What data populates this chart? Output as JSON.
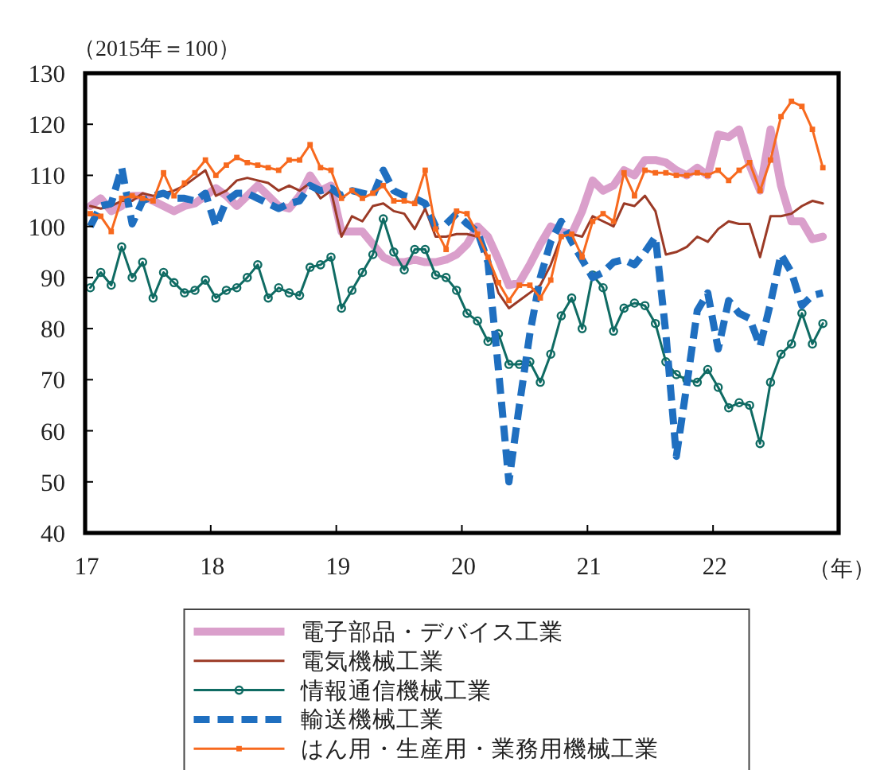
{
  "chart_data": {
    "type": "line",
    "ylabel": "（2015年＝100）",
    "xlabel": "（年）",
    "x": [
      "2017-01-16",
      "2017-02-16",
      "2017-03-16",
      "2017-04-16",
      "2017-05-16",
      "2017-06-16",
      "2017-07-16",
      "2017-08-16",
      "2017-09-16",
      "2017-10-16",
      "2017-11-16",
      "2017-12-16",
      "2018-01-16",
      "2018-02-16",
      "2018-03-16",
      "2018-04-16",
      "2018-05-16",
      "2018-06-16",
      "2018-07-16",
      "2018-08-16",
      "2018-09-16",
      "2018-10-16",
      "2018-11-16",
      "2018-12-16",
      "2019-01-16",
      "2019-02-16",
      "2019-03-16",
      "2019-04-16",
      "2019-05-16",
      "2019-06-16",
      "2019-07-16",
      "2019-08-16",
      "2019-09-16",
      "2019-10-16",
      "2019-11-16",
      "2019-12-16",
      "2020-01-16",
      "2020-02-16",
      "2020-03-16",
      "2020-04-16",
      "2020-05-16",
      "2020-06-16",
      "2020-07-16",
      "2020-08-16",
      "2020-09-16",
      "2020-10-16",
      "2020-11-16",
      "2020-12-16",
      "2021-01-16",
      "2021-02-16",
      "2021-03-16",
      "2021-04-16",
      "2021-05-16",
      "2021-06-16",
      "2021-07-16",
      "2021-08-16",
      "2021-09-16",
      "2021-10-16",
      "2021-11-16",
      "2021-12-16",
      "2022-01-16",
      "2022-02-16",
      "2022-03-16",
      "2022-04-16",
      "2022-05-16",
      "2022-06-16",
      "2022-07-16",
      "2022-08-16",
      "2022-09-16",
      "2022-10-16",
      "2022-11-16"
    ],
    "xlim": [
      "2017",
      "2023"
    ],
    "xticks": [
      {
        "value": "2017",
        "label": "17"
      },
      {
        "value": "2018",
        "label": "18"
      },
      {
        "value": "2019",
        "label": "19"
      },
      {
        "value": "2020",
        "label": "20"
      },
      {
        "value": "2021",
        "label": "21"
      },
      {
        "value": "2022",
        "label": "22"
      }
    ],
    "ylim": [
      40,
      130
    ],
    "yticks": [
      40,
      50,
      60,
      70,
      80,
      90,
      100,
      110,
      120,
      130
    ],
    "legend": "bottom",
    "series": [
      {
        "name": "電子部品・デバイス工業",
        "color": "#da9fcb",
        "line_style": "solid",
        "marker": "none",
        "values": [
          104,
          105.5,
          103,
          104,
          106,
          106,
          105,
          104,
          103,
          104,
          104.5,
          106,
          107.5,
          106,
          104,
          106,
          108,
          106,
          104,
          103.5,
          106,
          110,
          107,
          108,
          99,
          99,
          99,
          96.5,
          94,
          93,
          93,
          93.5,
          93,
          93,
          93.5,
          94.5,
          96.5,
          100,
          98,
          93.5,
          88.5,
          89,
          92.5,
          96.5,
          100,
          99,
          98.5,
          103,
          109,
          107,
          108,
          111,
          110,
          113,
          113,
          112.5,
          111,
          110,
          111.5,
          110,
          118,
          117.5,
          119,
          112,
          107,
          119,
          108,
          101,
          101,
          97.5,
          98
        ]
      },
      {
        "name": "電気機械工業",
        "color": "#9b3a26",
        "line_style": "solid",
        "marker": "none",
        "values": [
          104,
          103.5,
          104,
          105,
          105,
          106.5,
          106,
          106.5,
          107,
          108,
          109.5,
          111,
          106,
          107,
          109,
          109.5,
          109,
          108.5,
          107,
          108,
          107,
          108.5,
          105.5,
          107,
          98,
          102,
          101,
          104,
          104.5,
          103,
          102.5,
          99.5,
          103.5,
          98,
          98,
          98.5,
          98.5,
          98,
          93.5,
          87,
          84,
          85.5,
          87,
          88.5,
          92.5,
          98,
          98.5,
          98,
          102,
          101,
          100,
          104.5,
          104,
          106,
          103,
          94.5,
          95,
          96,
          98,
          97,
          99.5,
          101,
          100.5,
          100.5,
          94,
          102,
          102,
          102.5,
          104,
          105,
          104.5
        ]
      },
      {
        "name": "情報通信機械工業",
        "color": "#0f6b63",
        "line_style": "solid",
        "marker": "circle",
        "values": [
          88,
          91,
          88.5,
          96,
          90,
          93,
          86,
          91,
          89,
          87,
          87.5,
          89.5,
          86,
          87.5,
          88,
          90,
          92.5,
          86,
          88,
          87,
          86.5,
          92,
          92.5,
          94,
          84,
          87.5,
          91,
          94.5,
          101.5,
          95,
          91.5,
          95.5,
          95.5,
          90.5,
          90,
          87.5,
          83,
          81.5,
          77.5,
          79,
          73,
          73,
          73.5,
          69.5,
          75,
          82.5,
          86,
          80,
          90.5,
          88,
          79.5,
          84,
          85,
          84.5,
          81,
          73.5,
          71,
          70,
          69.5,
          72,
          68.5,
          64.5,
          65.5,
          65,
          57.5,
          69.5,
          75,
          77,
          83,
          77,
          81
        ]
      },
      {
        "name": "輸送機械工業",
        "color": "#1f6fc0",
        "line_style": "dashed",
        "marker": "none",
        "values": [
          100,
          104,
          104.5,
          111.5,
          100.5,
          105,
          106,
          106.5,
          105.5,
          105.5,
          105,
          106.5,
          100,
          105,
          106.5,
          106.5,
          105.5,
          104.5,
          103.5,
          104.5,
          105,
          108,
          107,
          107.5,
          106,
          107,
          106.5,
          106,
          111,
          107,
          106,
          105.5,
          104.5,
          100,
          100.5,
          102.5,
          100.5,
          99,
          93,
          72,
          50,
          65,
          79,
          90,
          97,
          101,
          97,
          93.5,
          90,
          91,
          93,
          93.5,
          92.5,
          95,
          98,
          79,
          55,
          69,
          83.5,
          87,
          76,
          85.5,
          83,
          82,
          76.5,
          85,
          94.5,
          91,
          84.5,
          86.5,
          87
        ]
      },
      {
        "name": "はん用・生産用・業務用機械工業",
        "color": "#f7691e",
        "line_style": "solid",
        "marker": "square",
        "values": [
          102.5,
          102,
          99,
          105.5,
          106,
          105.5,
          105,
          110.5,
          106,
          108.5,
          110.5,
          113,
          110,
          112,
          113.5,
          112.5,
          112,
          111.5,
          111,
          113,
          113,
          116,
          111.5,
          111,
          105.5,
          107,
          105.5,
          106.5,
          108,
          105,
          105,
          104.5,
          111,
          99.5,
          95.5,
          103,
          102.5,
          98.5,
          94,
          89,
          85.5,
          88.5,
          88.5,
          86,
          89.5,
          98,
          98.5,
          94,
          101,
          102.5,
          101,
          110.5,
          106,
          111,
          110.5,
          110.5,
          110,
          110,
          110.5,
          110,
          111,
          109,
          111,
          112.5,
          107,
          113,
          121.5,
          124.5,
          123.5,
          119,
          111.5
        ]
      }
    ]
  }
}
